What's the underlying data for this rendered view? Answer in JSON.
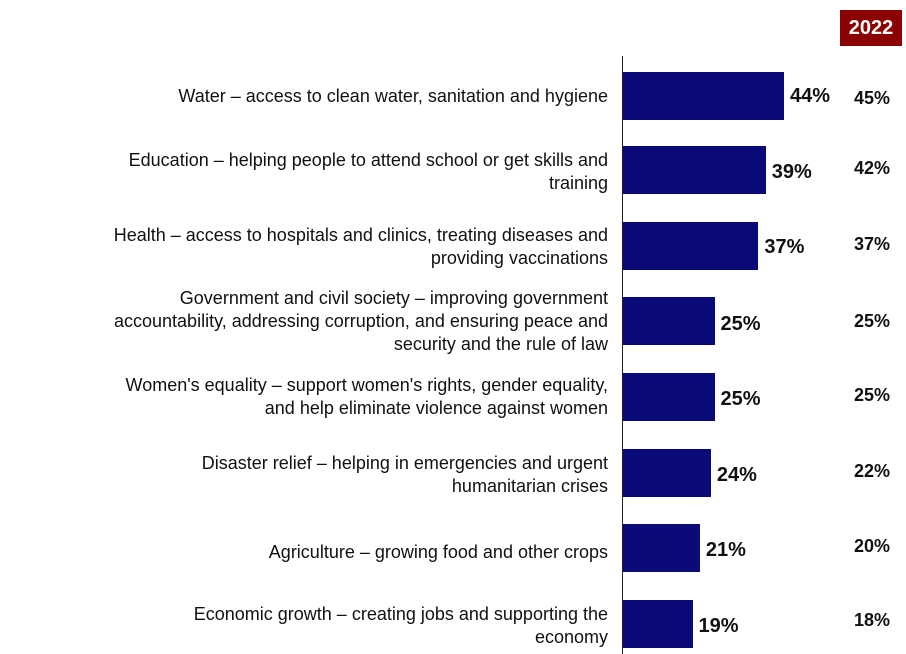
{
  "chart_data": {
    "type": "bar",
    "orientation": "horizontal",
    "comparison_year": "2022",
    "categories": [
      "Water – access to clean water, sanitation and hygiene",
      "Education – helping people to attend school or get skills and\ntraining",
      "Health – access to hospitals and clinics, treating diseases and\nproviding vaccinations",
      "Government and civil society – improving government\naccountability, addressing corruption, and ensuring peace and\nsecurity and the rule of law",
      "Women's equality – support women's rights, gender equality,\nand help eliminate violence against women",
      "Disaster relief – helping in emergencies and urgent\nhumanitarian crises",
      "Agriculture – growing food and other crops",
      "Economic growth – creating jobs and supporting the\neconomy"
    ],
    "values": [
      44,
      39,
      37,
      25,
      25,
      24,
      21,
      19
    ],
    "value_labels": [
      "44%",
      "39%",
      "37%",
      "25%",
      "25%",
      "24%",
      "21%",
      "19%"
    ],
    "comparison_values": [
      45,
      42,
      37,
      25,
      25,
      22,
      20,
      18
    ],
    "comparison_labels": [
      "45%",
      "42%",
      "37%",
      "25%",
      "25%",
      "22%",
      "20%",
      "18%"
    ],
    "xlim": [
      0,
      100
    ],
    "colors": {
      "bar": "#0b0a79",
      "year_badge": "#8b0000"
    }
  }
}
